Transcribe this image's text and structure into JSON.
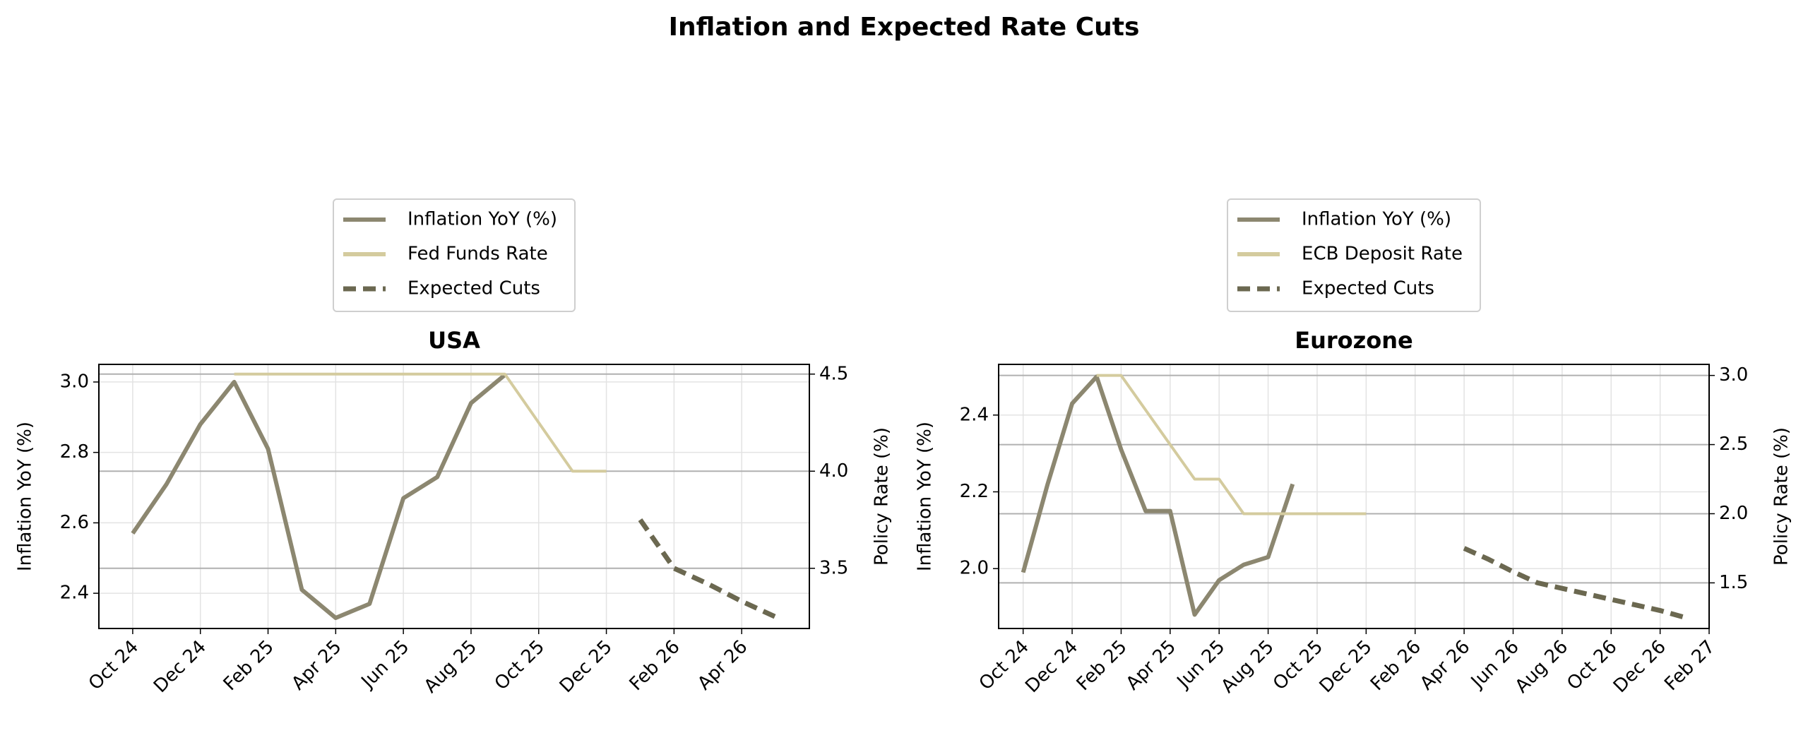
{
  "title": "Inflation and Expected Rate Cuts",
  "chart_data": [
    {
      "type": "line",
      "title": "USA",
      "ylabel": "Inflation YoY (%)",
      "y2label": "Policy Rate (%)",
      "x": [
        "2024-10",
        "2024-11",
        "2024-12",
        "2025-01",
        "2025-02",
        "2025-03",
        "2025-04",
        "2025-05",
        "2025-06",
        "2025-07",
        "2025-08",
        "2025-09",
        "2025-10",
        "2025-11",
        "2025-12",
        "2026-01",
        "2026-02",
        "2026-03",
        "2026-04",
        "2026-05"
      ],
      "xlim": [
        "2024-09",
        "2026-06"
      ],
      "xticks": [
        {
          "value": "2024-10",
          "label": "Oct 24"
        },
        {
          "value": "2024-12",
          "label": "Dec 24"
        },
        {
          "value": "2025-02",
          "label": "Feb 25"
        },
        {
          "value": "2025-04",
          "label": "Apr 25"
        },
        {
          "value": "2025-06",
          "label": "Jun 25"
        },
        {
          "value": "2025-08",
          "label": "Aug 25"
        },
        {
          "value": "2025-10",
          "label": "Oct 25"
        },
        {
          "value": "2025-12",
          "label": "Dec 25"
        },
        {
          "value": "2026-02",
          "label": "Feb 26"
        },
        {
          "value": "2026-04",
          "label": "Apr 26"
        }
      ],
      "ylim": [
        2.3,
        3.05
      ],
      "yticks": [
        2.4,
        2.6,
        2.8,
        {
          "value": 3,
          "label": "3.0"
        }
      ],
      "y2lim": [
        3.19,
        4.55
      ],
      "y2ticks": [
        3.5,
        {
          "value": 4,
          "label": "4.0"
        },
        4.5
      ],
      "grid": true,
      "legend": "upper center",
      "series": [
        {
          "name": "Inflation YoY (%)",
          "color": "#8c8770",
          "values": [
            2.57,
            2.71,
            2.88,
            3.0,
            2.81,
            2.41,
            2.33,
            2.37,
            2.67,
            2.73,
            2.94,
            3.02,
            null,
            null,
            null,
            null,
            null,
            null,
            null,
            null
          ]
        },
        {
          "name": "Fed Funds Rate",
          "color": "#d4cb9e",
          "axis": "y2",
          "values": [
            null,
            null,
            null,
            4.5,
            4.5,
            4.5,
            4.5,
            4.5,
            4.5,
            4.5,
            4.5,
            4.5,
            4.25,
            4.0,
            4.0,
            null,
            null,
            null,
            null,
            null
          ]
        },
        {
          "name": "Expected Cuts",
          "color": "#6b6850",
          "axis": "y2",
          "linestyle": "dashed",
          "values": [
            null,
            null,
            null,
            null,
            null,
            null,
            null,
            null,
            null,
            null,
            null,
            null,
            null,
            null,
            null,
            3.75,
            3.5,
            3.42,
            3.33,
            3.25
          ]
        }
      ]
    },
    {
      "type": "line",
      "title": "Eurozone",
      "ylabel": "Inflation YoY (%)",
      "y2label": "Policy Rate (%)",
      "x": [
        "2024-10",
        "2024-11",
        "2024-12",
        "2025-01",
        "2025-02",
        "2025-03",
        "2025-04",
        "2025-05",
        "2025-06",
        "2025-07",
        "2025-08",
        "2025-09",
        "2025-10",
        "2025-11",
        "2025-12",
        "2026-01",
        "2026-02",
        "2026-03",
        "2026-04",
        "2026-05",
        "2026-06",
        "2026-07",
        "2026-08",
        "2026-09",
        "2026-10",
        "2026-11",
        "2026-12",
        "2027-01"
      ],
      "xlim": [
        "2024-09",
        "2027-02"
      ],
      "xticks": [
        {
          "value": "2024-10",
          "label": "Oct 24"
        },
        {
          "value": "2024-12",
          "label": "Dec 24"
        },
        {
          "value": "2025-02",
          "label": "Feb 25"
        },
        {
          "value": "2025-04",
          "label": "Apr 25"
        },
        {
          "value": "2025-06",
          "label": "Jun 25"
        },
        {
          "value": "2025-08",
          "label": "Aug 25"
        },
        {
          "value": "2025-10",
          "label": "Oct 25"
        },
        {
          "value": "2025-12",
          "label": "Dec 25"
        },
        {
          "value": "2026-02",
          "label": "Feb 26"
        },
        {
          "value": "2026-04",
          "label": "Apr 26"
        },
        {
          "value": "2026-06",
          "label": "Jun 26"
        },
        {
          "value": "2026-08",
          "label": "Aug 26"
        },
        {
          "value": "2026-10",
          "label": "Oct 26"
        },
        {
          "value": "2026-12",
          "label": "Dec 26"
        },
        {
          "value": "2027-02",
          "label": "Feb 27"
        }
      ],
      "ylim": [
        1.844,
        2.532
      ],
      "yticks": [
        {
          "value": 2,
          "label": "2.0"
        },
        2.2,
        2.4
      ],
      "y2lim": [
        1.17,
        3.08
      ],
      "y2ticks": [
        1.5,
        {
          "value": 2,
          "label": "2.0"
        },
        2.5,
        {
          "value": 3,
          "label": "3.0"
        }
      ],
      "grid": true,
      "legend": "upper center",
      "series": [
        {
          "name": "Inflation YoY (%)",
          "color": "#8c8770",
          "values": [
            1.99,
            2.22,
            2.43,
            2.5,
            2.31,
            2.15,
            2.15,
            1.88,
            1.97,
            2.01,
            2.03,
            2.22,
            null,
            null,
            null,
            null,
            null,
            null,
            null,
            null,
            null,
            null,
            null,
            null,
            null,
            null,
            null,
            null
          ]
        },
        {
          "name": "ECB Deposit Rate",
          "color": "#d4cb9e",
          "axis": "y2",
          "values": [
            null,
            null,
            null,
            3.0,
            3.0,
            2.75,
            2.5,
            2.25,
            2.25,
            2.0,
            2.0,
            2.0,
            2.0,
            2.0,
            2.0,
            null,
            null,
            null,
            null,
            null,
            null,
            null,
            null,
            null,
            null,
            null,
            null,
            null
          ]
        },
        {
          "name": "Expected Cuts",
          "color": "#6b6850",
          "axis": "y2",
          "linestyle": "dashed",
          "values": [
            null,
            null,
            null,
            null,
            null,
            null,
            null,
            null,
            null,
            null,
            null,
            null,
            null,
            null,
            null,
            null,
            null,
            null,
            1.75,
            1.67,
            1.58,
            1.5,
            1.46,
            1.42,
            1.38,
            1.34,
            1.3,
            1.25
          ]
        }
      ]
    }
  ]
}
